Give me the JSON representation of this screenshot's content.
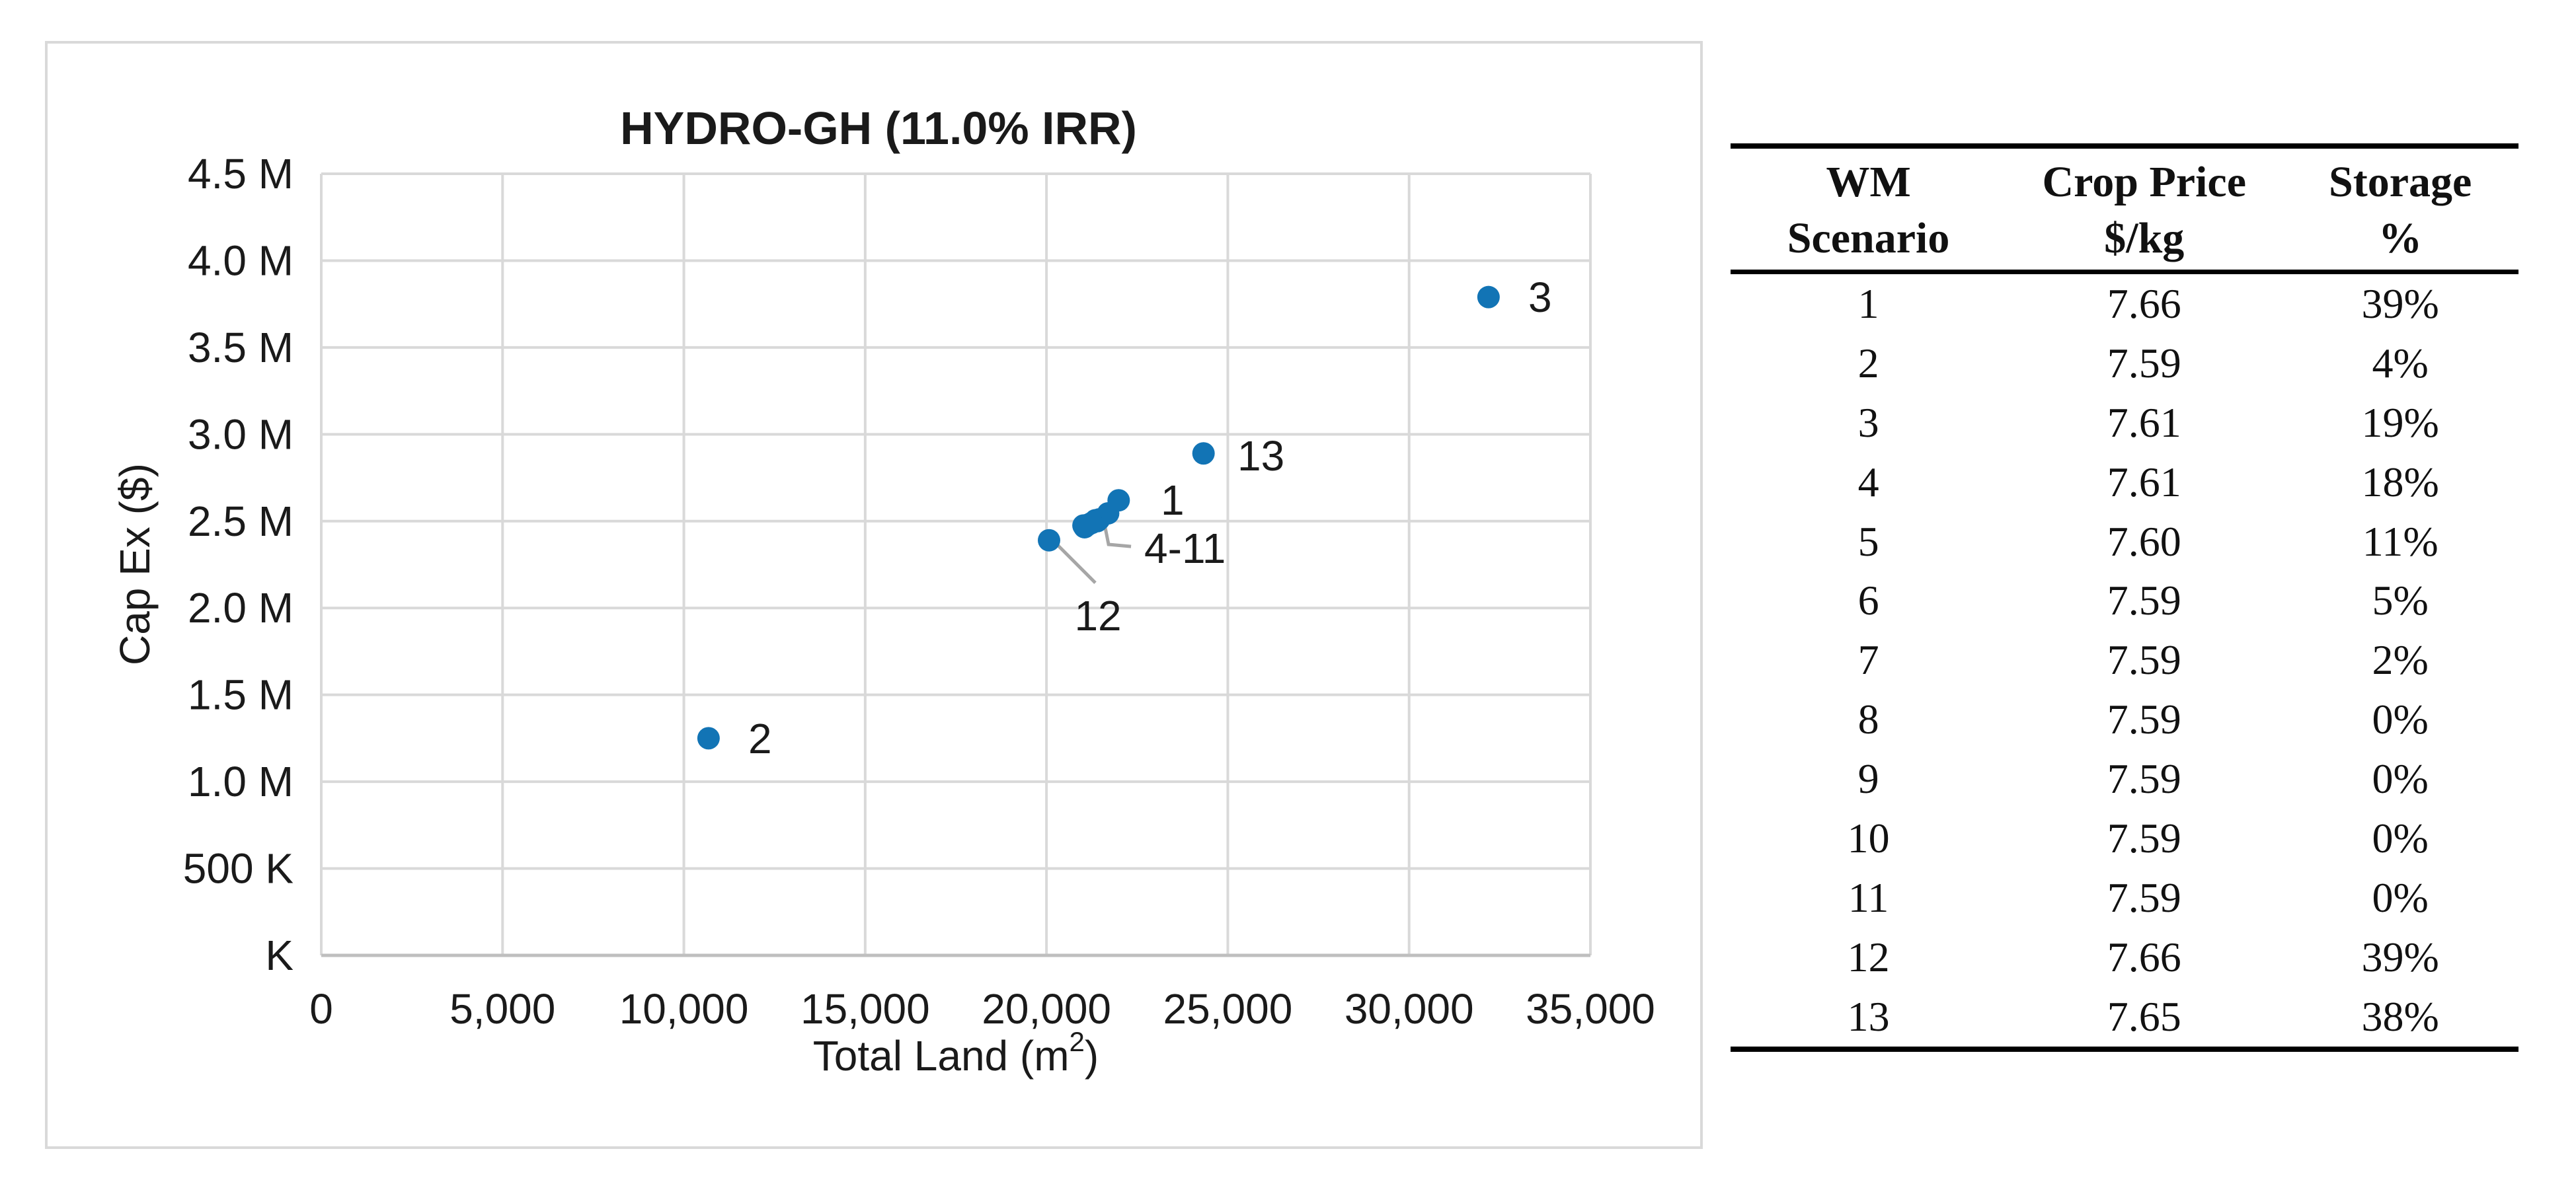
{
  "colors": {
    "accent_point": "#1274B5",
    "gridline": "#D9D9D9",
    "axis_line": "#BFBFBF",
    "leader_line": "#A6A6A6",
    "chart_text": "#1A1A1A",
    "panel_border": "#D9D9D9",
    "table_rule": "#000000"
  },
  "chart": {
    "title": "HYDRO-GH (11.0% IRR)",
    "y_axis_title": "Cap Ex ($)",
    "x_axis_title_pre": "Total Land (m",
    "x_axis_title_sup": "2",
    "x_axis_title_post": ")"
  },
  "chart_data": {
    "type": "scatter",
    "title": "HYDRO-GH (11.0% IRR)",
    "xlabel": "Total Land (m^2)",
    "ylabel": "Cap Ex ($)",
    "xlim": [
      0,
      35000
    ],
    "ylim": [
      0,
      4500000
    ],
    "grid": true,
    "x_ticks": [
      {
        "v": 0,
        "label": "0"
      },
      {
        "v": 5000,
        "label": "5,000"
      },
      {
        "v": 10000,
        "label": "10,000"
      },
      {
        "v": 15000,
        "label": "15,000"
      },
      {
        "v": 20000,
        "label": "20,000"
      },
      {
        "v": 25000,
        "label": "25,000"
      },
      {
        "v": 30000,
        "label": "30,000"
      },
      {
        "v": 35000,
        "label": "35,000"
      }
    ],
    "y_ticks": [
      {
        "v": 0,
        "label": "K"
      },
      {
        "v": 500000,
        "label": "500 K"
      },
      {
        "v": 1000000,
        "label": "1.0 M"
      },
      {
        "v": 1500000,
        "label": "1.5 M"
      },
      {
        "v": 2000000,
        "label": "2.0 M"
      },
      {
        "v": 2500000,
        "label": "2.5 M"
      },
      {
        "v": 3000000,
        "label": "3.0 M"
      },
      {
        "v": 3500000,
        "label": "3.5 M"
      },
      {
        "v": 4000000,
        "label": "4.0 M"
      },
      {
        "v": 4500000,
        "label": "4.5 M"
      }
    ],
    "points": [
      {
        "scenario": "1",
        "x": 21990,
        "y": 2620000
      },
      {
        "scenario": "2",
        "x": 10680,
        "y": 1250000
      },
      {
        "scenario": "3",
        "x": 32190,
        "y": 3790000
      },
      {
        "scenario": "4",
        "x": 21020,
        "y": 2475000
      },
      {
        "scenario": "5",
        "x": 21350,
        "y": 2505000
      },
      {
        "scenario": "6",
        "x": 21700,
        "y": 2545000
      },
      {
        "scenario": "7",
        "x": 21050,
        "y": 2465000
      },
      {
        "scenario": "8",
        "x": 21400,
        "y": 2500000
      },
      {
        "scenario": "9",
        "x": 21150,
        "y": 2480000
      },
      {
        "scenario": "10",
        "x": 21450,
        "y": 2510000
      },
      {
        "scenario": "11",
        "x": 21250,
        "y": 2490000
      },
      {
        "scenario": "12",
        "x": 20070,
        "y": 2390000
      },
      {
        "scenario": "13",
        "x": 24330,
        "y": 2890000
      }
    ],
    "annotations": [
      {
        "text": "1",
        "x": 23151,
        "y": 2621000,
        "anchor": "start"
      },
      {
        "text": "2",
        "x": 11776,
        "y": 1248000,
        "anchor": "start"
      },
      {
        "text": "3",
        "x": 33287,
        "y": 3788000,
        "anchor": "start"
      },
      {
        "text": "4-11",
        "x": 22696,
        "y": 2343000,
        "anchor": "start"
      },
      {
        "text": "12",
        "x": 21420,
        "y": 1955000,
        "anchor": "middle"
      },
      {
        "text": "13",
        "x": 25266,
        "y": 2875000,
        "anchor": "start"
      }
    ],
    "leader_lines": [
      {
        "for": "12",
        "path": [
          [
            20107,
            2404000
          ],
          [
            21347,
            2145000
          ]
        ]
      },
      {
        "for": "4-11",
        "path": [
          [
            21530,
            2556000
          ],
          [
            21712,
            2366000
          ],
          [
            22332,
            2354000
          ]
        ]
      }
    ],
    "legend": null
  },
  "table": {
    "headers": [
      {
        "line1": "WM",
        "line2": "Scenario"
      },
      {
        "line1": "Crop Price",
        "line2": "$/kg"
      },
      {
        "line1": "Storage",
        "line2": "%"
      }
    ],
    "rows": [
      [
        "1",
        "7.66",
        "39%"
      ],
      [
        "2",
        "7.59",
        "4%"
      ],
      [
        "3",
        "7.61",
        "19%"
      ],
      [
        "4",
        "7.61",
        "18%"
      ],
      [
        "5",
        "7.60",
        "11%"
      ],
      [
        "6",
        "7.59",
        "5%"
      ],
      [
        "7",
        "7.59",
        "2%"
      ],
      [
        "8",
        "7.59",
        "0%"
      ],
      [
        "9",
        "7.59",
        "0%"
      ],
      [
        "10",
        "7.59",
        "0%"
      ],
      [
        "11",
        "7.59",
        "0%"
      ],
      [
        "12",
        "7.66",
        "39%"
      ],
      [
        "13",
        "7.65",
        "38%"
      ]
    ]
  }
}
